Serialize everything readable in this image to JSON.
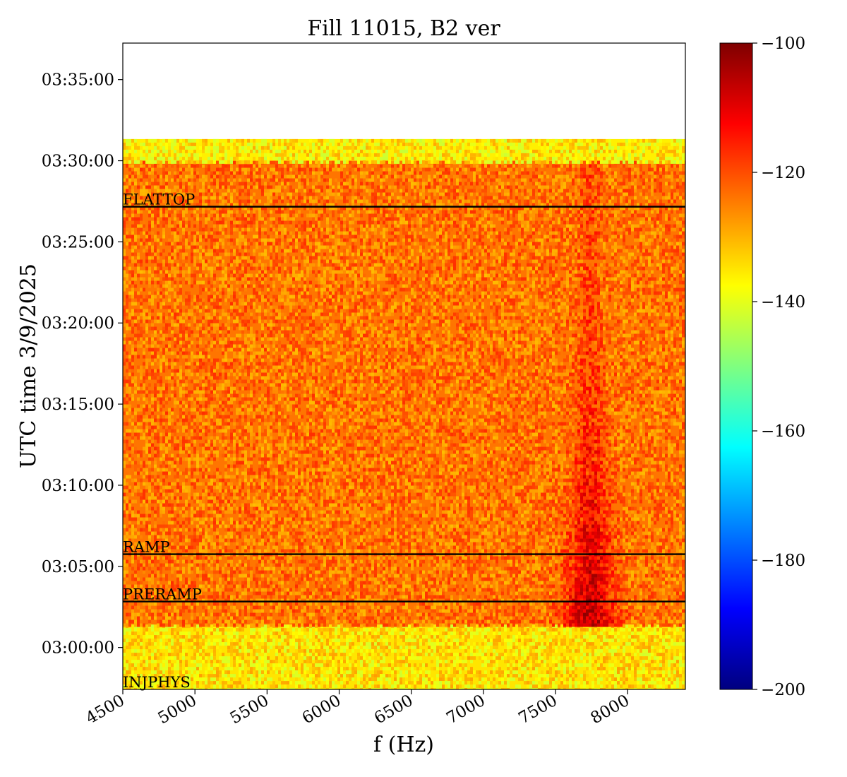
{
  "chart_data": {
    "type": "heatmap",
    "title": "Fill 11015, B2 ver",
    "xlabel": "f (Hz)",
    "ylabel": "UTC time 3/9/2025",
    "xlim": [
      4500,
      8400
    ],
    "x_ticks": [
      4500,
      5000,
      5500,
      6000,
      6500,
      7000,
      7500,
      8000
    ],
    "x_tick_labels": [
      "4500",
      "5000",
      "5500",
      "6000",
      "6500",
      "7000",
      "7500",
      "8000"
    ],
    "ylim": [
      "02:57:25",
      "03:37:15"
    ],
    "y_tick_labels": [
      "03:00:00",
      "03:05:00",
      "03:10:00",
      "03:15:00",
      "03:20:00",
      "03:25:00",
      "03:30:00",
      "03:35:00"
    ],
    "colorbar": {
      "colormap": "jet",
      "range": [
        -200,
        -100
      ],
      "ticks": [
        -100,
        -120,
        -140,
        -160,
        -180,
        -200
      ],
      "tick_labels": [
        "−100",
        "−120",
        "−140",
        "−160",
        "−180",
        "−200"
      ]
    },
    "bands": [
      {
        "start": "02:57:25",
        "end": "03:01:25",
        "level_db": -135
      },
      {
        "start": "03:01:25",
        "end": "03:30:00",
        "level_db": -124
      },
      {
        "start": "03:30:00",
        "end": "03:31:20",
        "level_db": -136
      }
    ],
    "features": [
      {
        "description": "enhanced signal line",
        "center_hz": 7730,
        "start": "03:01:25",
        "end": "03:30:00",
        "peak_db": -105
      }
    ],
    "events": [
      {
        "label": "INJPHYS",
        "time": "02:57:25"
      },
      {
        "label": "PRERAMP",
        "time": "03:02:50"
      },
      {
        "label": "RAMP",
        "time": "03:05:45"
      },
      {
        "label": "FLATTOP",
        "time": "03:27:10"
      }
    ]
  }
}
